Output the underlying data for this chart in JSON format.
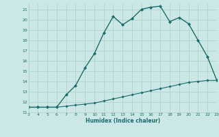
{
  "xlabel": "Humidex (Indice chaleur)",
  "background_color": "#cce8e6",
  "grid_color": "#aacfcc",
  "line_color": "#1a6b6b",
  "xlim": [
    3,
    23
  ],
  "ylim": [
    11,
    21.5
  ],
  "x_ticks": [
    3,
    4,
    5,
    6,
    7,
    8,
    9,
    10,
    11,
    12,
    13,
    14,
    15,
    16,
    17,
    18,
    19,
    20,
    21,
    22,
    23
  ],
  "y_ticks": [
    11,
    12,
    13,
    14,
    15,
    16,
    17,
    18,
    19,
    20,
    21
  ],
  "curve1_x": [
    3,
    4,
    5,
    6,
    7,
    8,
    9,
    10,
    11,
    12,
    13,
    14,
    15,
    16,
    17,
    18,
    19,
    20,
    21,
    22,
    23
  ],
  "curve1_y": [
    11.5,
    11.5,
    11.5,
    11.5,
    12.7,
    13.6,
    15.3,
    16.7,
    18.7,
    20.3,
    19.5,
    20.1,
    21.0,
    21.2,
    21.3,
    19.8,
    20.2,
    19.6,
    18.0,
    16.4,
    14.1
  ],
  "curve2_x": [
    3,
    4,
    5,
    6,
    7,
    8,
    9,
    10,
    11,
    12,
    13,
    14,
    15,
    16,
    17,
    18,
    19,
    20,
    21,
    22,
    23
  ],
  "curve2_y": [
    11.5,
    11.5,
    11.5,
    11.5,
    11.6,
    11.7,
    11.8,
    11.9,
    12.1,
    12.3,
    12.5,
    12.7,
    12.9,
    13.1,
    13.3,
    13.5,
    13.7,
    13.9,
    14.0,
    14.1,
    14.1
  ]
}
